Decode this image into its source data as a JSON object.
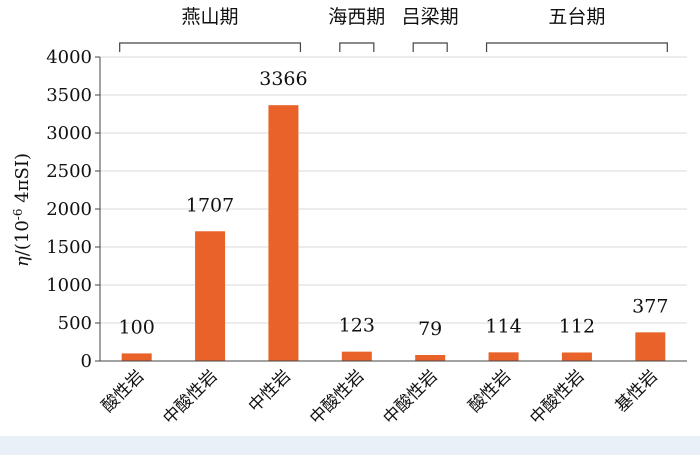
{
  "chart_data": {
    "type": "bar",
    "categories": [
      "酸性岩",
      "中酸性岩",
      "中性岩",
      "中酸性岩",
      "中酸性岩",
      "酸性岩",
      "中酸性岩",
      "基性岩"
    ],
    "values": [
      100,
      1707,
      3366,
      123,
      79,
      114,
      112,
      377
    ],
    "data_labels": [
      "100",
      "1707",
      "3366",
      "123",
      "79",
      "114",
      "112",
      "377"
    ],
    "ylabel_parts": [
      "η",
      "/(10",
      "-6",
      " 4πSI)"
    ],
    "ylim": [
      0,
      4000
    ],
    "yticks": [
      0,
      500,
      1000,
      1500,
      2000,
      2500,
      3000,
      3500,
      4000
    ],
    "ytick_labels": [
      "0",
      "500",
      "1000",
      "1500",
      "2000",
      "2500",
      "3000",
      "3500",
      "4000"
    ],
    "groups": [
      {
        "label": "燕山期",
        "start": 0,
        "end": 2
      },
      {
        "label": "海西期",
        "start": 3,
        "end": 3
      },
      {
        "label": "吕梁期",
        "start": 4,
        "end": 4
      },
      {
        "label": "五台期",
        "start": 5,
        "end": 7
      }
    ],
    "grid": true,
    "colors": {
      "bar": "#e8622a",
      "grid": "#d9d9d9",
      "axis": "#444444"
    }
  }
}
